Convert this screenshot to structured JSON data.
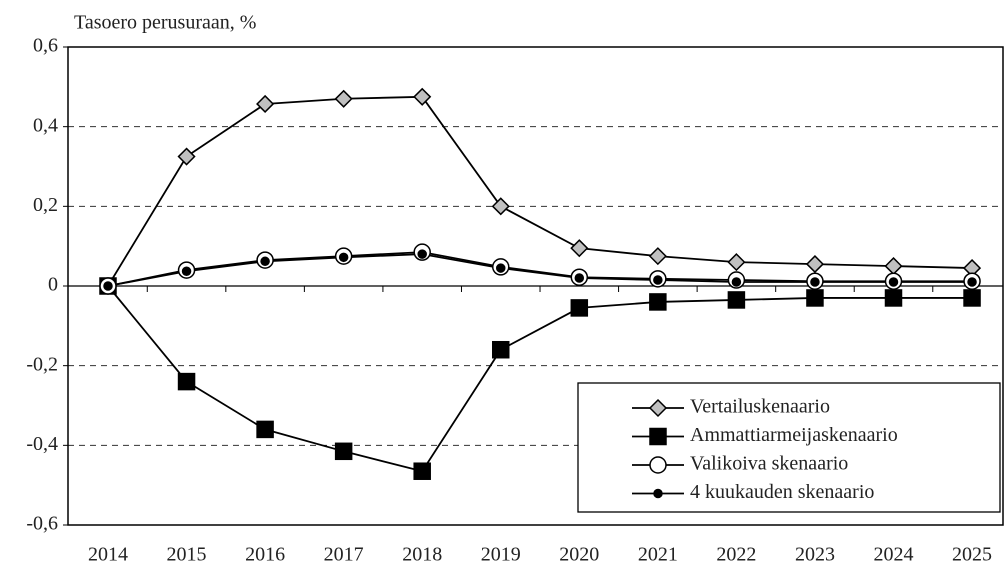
{
  "chart_data": {
    "type": "line",
    "y_label": "Tasoero perusuraan, %",
    "categories": [
      "2014",
      "2015",
      "2016",
      "2017",
      "2018",
      "2019",
      "2020",
      "2021",
      "2022",
      "2023",
      "2024",
      "2025"
    ],
    "series": [
      {
        "name": "Vertailuskenaario",
        "color": "#c0c0c0",
        "marker": "diamond",
        "values": [
          0,
          0.325,
          0.457,
          0.47,
          0.475,
          0.2,
          0.095,
          0.075,
          0.06,
          0.055,
          0.05,
          0.045
        ]
      },
      {
        "name": "Ammattiarmeijaskenaario",
        "color": "#000000",
        "marker": "square",
        "values": [
          0,
          -0.24,
          -0.36,
          -0.415,
          -0.465,
          -0.16,
          -0.055,
          -0.04,
          -0.035,
          -0.03,
          -0.03,
          -0.03
        ]
      },
      {
        "name": "Valikoiva skenaario",
        "color": "#ffffff",
        "marker": "circle",
        "values": [
          0,
          0.04,
          0.065,
          0.075,
          0.085,
          0.048,
          0.022,
          0.018,
          0.015,
          0.012,
          0.012,
          0.012
        ]
      },
      {
        "name": "4 kuukauden skenaario",
        "color": "#000000",
        "marker": "dot",
        "values": [
          0,
          0.037,
          0.062,
          0.072,
          0.08,
          0.045,
          0.02,
          0.015,
          0.01,
          0.01,
          0.01,
          0.01
        ]
      }
    ],
    "ylim": [
      -0.6,
      0.6
    ],
    "yticks": [
      {
        "value": -0.6,
        "label": "-0,6"
      },
      {
        "value": -0.4,
        "label": "-0,4"
      },
      {
        "value": -0.2,
        "label": "-0,2"
      },
      0,
      {
        "value": 0.2,
        "label": "0,2"
      },
      {
        "value": 0.4,
        "label": "0,4"
      },
      {
        "value": 0.6,
        "label": "0,6"
      }
    ],
    "grid": true,
    "legend": "lower right"
  }
}
